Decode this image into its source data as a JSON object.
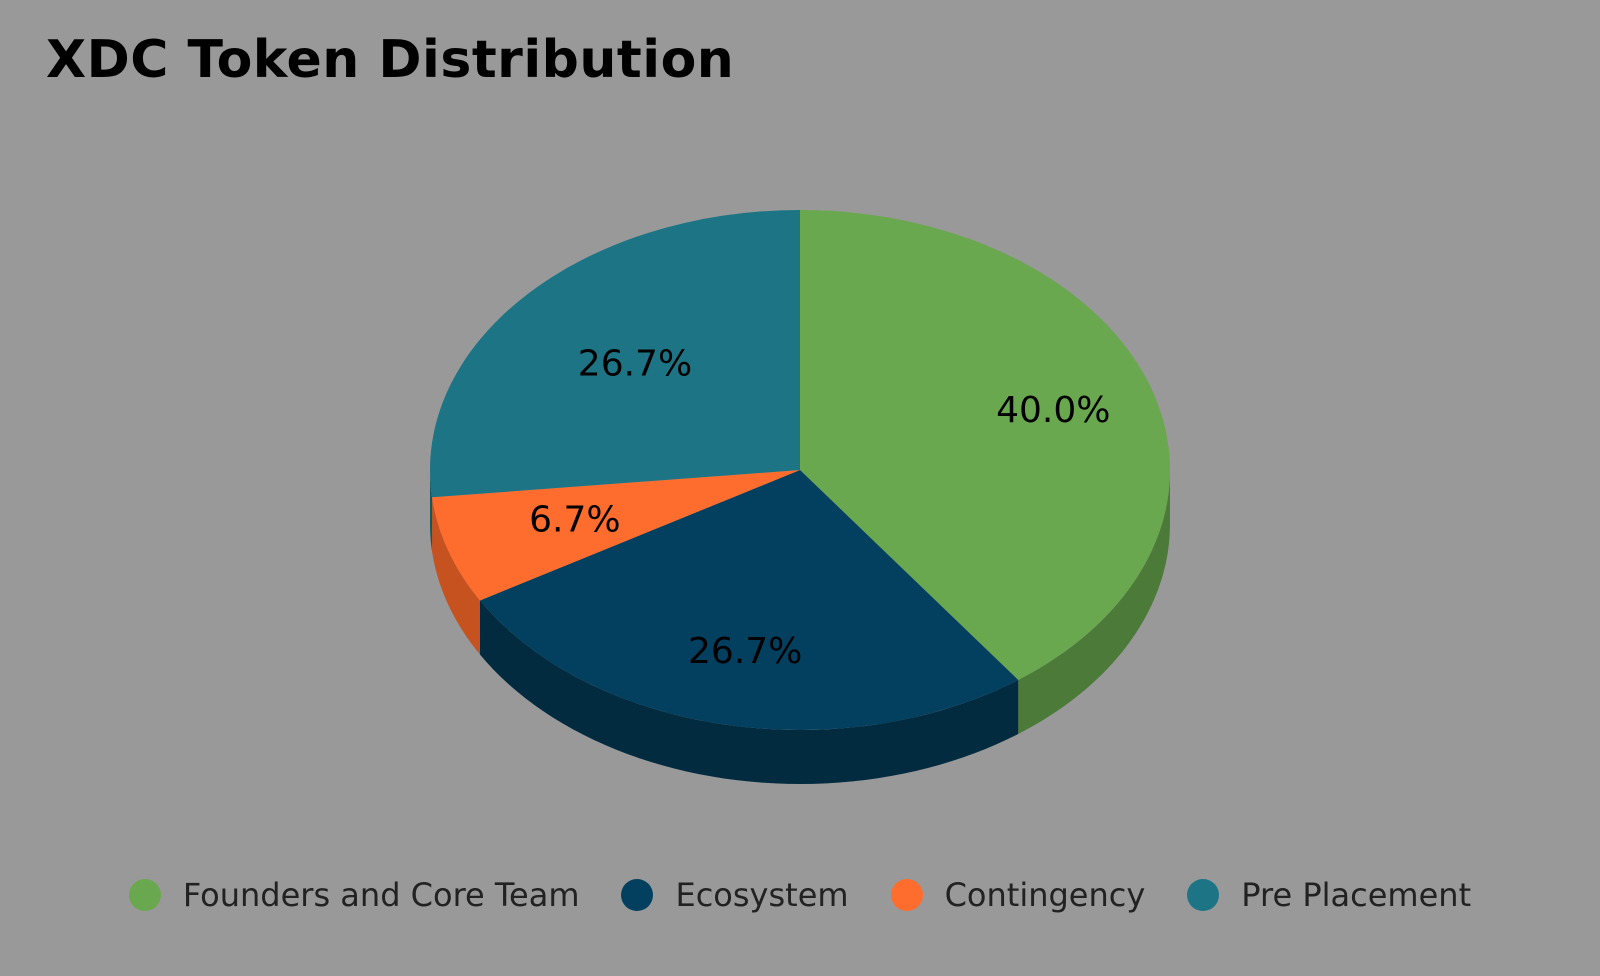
{
  "chart_data": {
    "type": "pie",
    "title": "XDC Token Distribution",
    "categories": [
      "Founders and Core Team",
      "Ecosystem",
      "Contingency",
      "Pre Placement"
    ],
    "values": [
      40.0,
      26.7,
      6.7,
      26.7
    ],
    "data_labels": [
      "40.0%",
      "26.7%",
      "6.7%",
      "26.7%"
    ],
    "colors": [
      "#6aa84f",
      "#03405f",
      "#ff6d2e",
      "#1c7485"
    ],
    "side_colors": [
      "#4c7a39",
      "#022b40",
      "#c5521f",
      "#145763"
    ],
    "style": "3d",
    "legend_position": "bottom",
    "background": "#999999"
  }
}
